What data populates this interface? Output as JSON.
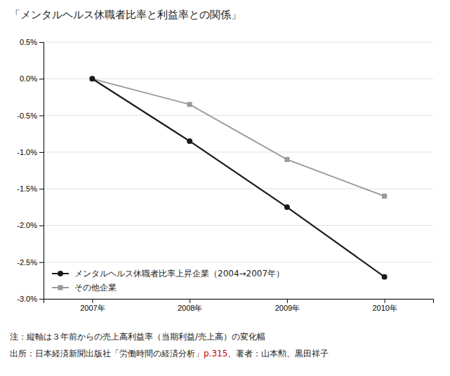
{
  "chart_data": {
    "type": "line",
    "title": "「メンタルヘルス休職者比率と利益率との関係」",
    "categories": [
      "2007年",
      "2008年",
      "2009年",
      "2010年"
    ],
    "series": [
      {
        "name": "その他企業",
        "color": "#999999",
        "marker": "square",
        "values": [
          0.0,
          -0.35,
          -1.1,
          -1.6
        ]
      },
      {
        "name": "メンタルヘルス休職者比率上昇企業（2004→2007年）",
        "color": "#1a1a1a",
        "marker": "circle",
        "values": [
          0.0,
          -0.85,
          -1.75,
          -2.7
        ]
      }
    ],
    "ylim": [
      -3.0,
      0.5
    ],
    "yticks": [
      {
        "value": 0.5,
        "label": "0.5%"
      },
      {
        "value": 0.0,
        "label": "0.0%"
      },
      {
        "value": -0.5,
        "label": "-0.5%"
      },
      {
        "value": -1.0,
        "label": "-1.0%"
      },
      {
        "value": -1.5,
        "label": "-1.5%"
      },
      {
        "value": -2.0,
        "label": "-2.0%"
      },
      {
        "value": -2.5,
        "label": "-2.5%"
      },
      {
        "value": -3.0,
        "label": "-3.0%"
      }
    ],
    "grid": true,
    "legend": "lower left",
    "annotations": [
      [
        {
          "text": "注：縦軸は３年前からの売上高利益率（当期利益/売上高）の変化幅"
        }
      ],
      [
        {
          "text": "出所：日本経済新聞出版社「労働時間の経済分析」"
        },
        {
          "text": "p.315",
          "color": "#c00000"
        },
        {
          "text": "、著者：山本勲、黒田祥子"
        }
      ]
    ]
  }
}
